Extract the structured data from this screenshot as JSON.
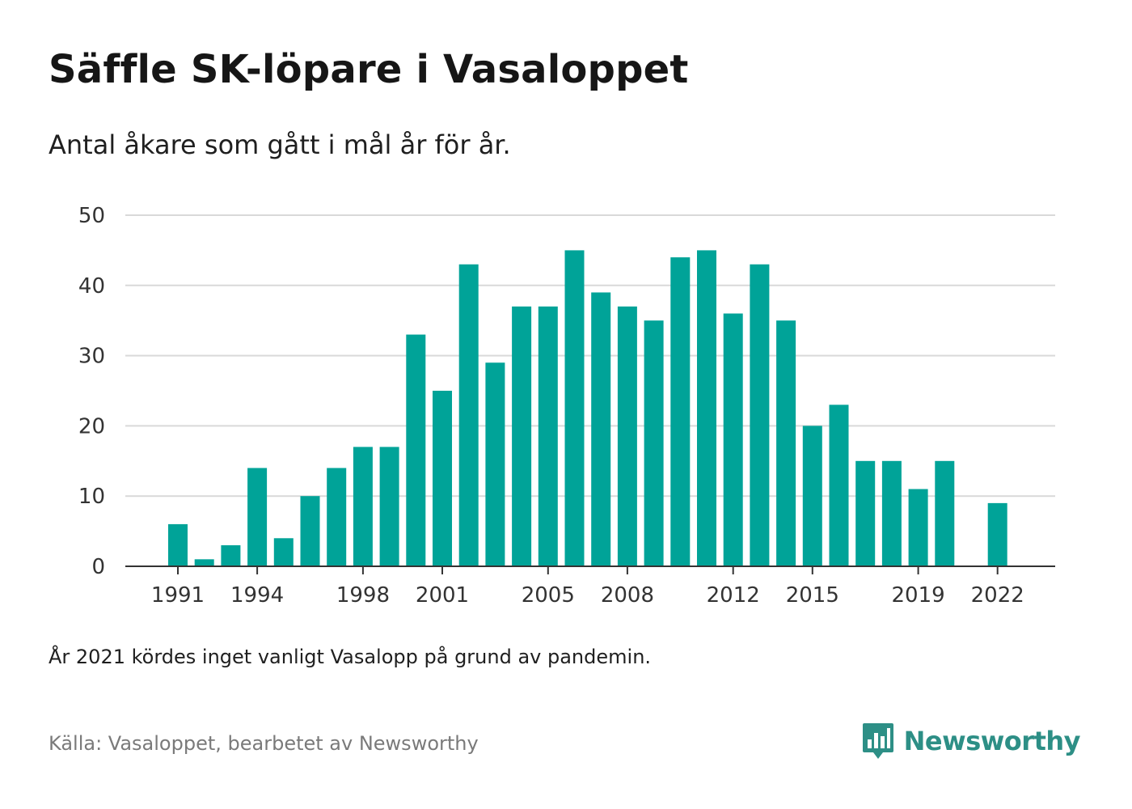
{
  "header": {
    "title": "Säffle SK-löpare i Vasaloppet",
    "subtitle": "Antal åkare som gått i mål år för år."
  },
  "footer": {
    "note": "År 2021 kördes inget vanligt Vasalopp på grund av pandemin.",
    "source": "Källa: Vasaloppet, bearbetet av Newsworthy",
    "brand": "Newsworthy",
    "brand_icon": "bar-chart-speech-bubble-icon"
  },
  "colors": {
    "bar": "#00a398",
    "grid": "#d9d9d9",
    "axis": "#333333",
    "brand": "#2d8f86"
  },
  "chart_data": {
    "type": "bar",
    "categories": [
      "1991",
      "1992",
      "1993",
      "1994",
      "1995",
      "1996",
      "1997",
      "1998",
      "1999",
      "2000",
      "2001",
      "2002",
      "2003",
      "2004",
      "2005",
      "2006",
      "2007",
      "2008",
      "2009",
      "2010",
      "2011",
      "2012",
      "2013",
      "2014",
      "2015",
      "2016",
      "2017",
      "2018",
      "2019",
      "2020",
      "2021",
      "2022"
    ],
    "values": [
      6,
      1,
      3,
      14,
      4,
      10,
      14,
      17,
      17,
      33,
      25,
      43,
      29,
      37,
      37,
      45,
      39,
      37,
      35,
      44,
      45,
      36,
      43,
      35,
      20,
      23,
      15,
      15,
      11,
      15,
      null,
      9
    ],
    "x_tick_labels": [
      "1991",
      "1994",
      "1998",
      "2001",
      "2005",
      "2008",
      "2012",
      "2015",
      "2019",
      "2022"
    ],
    "y_ticks": [
      0,
      10,
      20,
      30,
      40,
      50
    ],
    "ylim": [
      0,
      50
    ],
    "grid": true,
    "legend": "none",
    "xlabel": "",
    "ylabel": ""
  }
}
